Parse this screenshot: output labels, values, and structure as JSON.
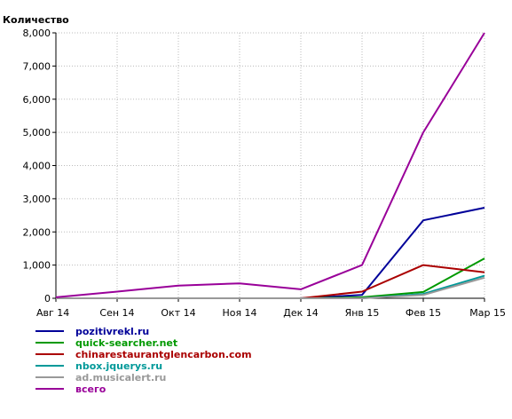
{
  "chart_data": {
    "type": "line",
    "ylabel": "Количество",
    "xlabel": "",
    "categories": [
      "Авг 14",
      "Сен 14",
      "Окт 14",
      "Ноя 14",
      "Дек 14",
      "Янв 15",
      "Фев 15",
      "Мар 15"
    ],
    "yticks": [
      "0",
      "1,000",
      "2,000",
      "3,000",
      "4,000",
      "5,000",
      "6,000",
      "7,000",
      "8,000"
    ],
    "ylim": [
      0,
      8000
    ],
    "grid": true,
    "legend_position": "bottom-left",
    "series": [
      {
        "name": "pozitivrekl.ru",
        "color": "#000099",
        "values": [
          0,
          0,
          0,
          0,
          0,
          100,
          2350,
          2730
        ]
      },
      {
        "name": "quick-searcher.net",
        "color": "#009900",
        "values": [
          0,
          0,
          0,
          0,
          0,
          30,
          190,
          1200
        ]
      },
      {
        "name": "chinarestaurantglencarbon.com",
        "color": "#aa0000",
        "values": [
          0,
          0,
          0,
          0,
          0,
          200,
          1000,
          780
        ]
      },
      {
        "name": "nbox.jquerys.ru",
        "color": "#009999",
        "values": [
          0,
          0,
          0,
          0,
          0,
          0,
          130,
          680
        ]
      },
      {
        "name": "ad.musicalert.ru",
        "color": "#999999",
        "values": [
          0,
          0,
          0,
          0,
          0,
          0,
          100,
          620
        ]
      },
      {
        "name": "всего",
        "color": "#990099",
        "values": [
          30,
          200,
          380,
          450,
          270,
          1000,
          5000,
          8000
        ]
      }
    ]
  }
}
